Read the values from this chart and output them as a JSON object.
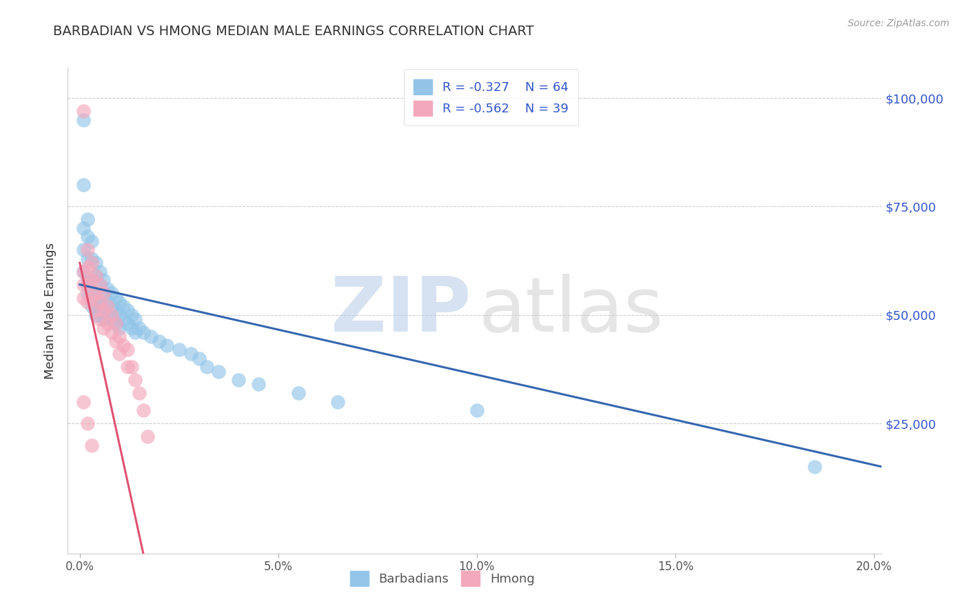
{
  "title": "BARBADIAN VS HMONG MEDIAN MALE EARNINGS CORRELATION CHART",
  "source_text": "Source: ZipAtlas.com",
  "ylabel": "Median Male Earnings",
  "xlim": [
    -0.003,
    0.202
  ],
  "ylim": [
    -5000,
    107000
  ],
  "xticks": [
    0.0,
    0.05,
    0.1,
    0.15,
    0.2
  ],
  "xtick_labels": [
    "0.0%",
    "5.0%",
    "10.0%",
    "15.0%",
    "20.0%"
  ],
  "ytick_labels": [
    "",
    "$25,000",
    "$50,000",
    "$75,000",
    "$100,000"
  ],
  "yticks": [
    0,
    25000,
    50000,
    75000,
    100000
  ],
  "legend_R_barb": "-0.327",
  "legend_N_barb": "64",
  "legend_R_hmong": "-0.562",
  "legend_N_hmong": "39",
  "blue_color": "#92C5E8",
  "pink_color": "#F4A8BC",
  "blue_line_color": "#3565B0",
  "pink_line_color": "#E05070",
  "grid_color": "#CCCCCC",
  "title_color": "#333333",
  "ylabel_color": "#333333",
  "source_color": "#999999",
  "ytick_color": "#3355CC",
  "legend_text_color": "#3355CC",
  "watermark_zip_color": "#BBCFE8",
  "watermark_atlas_color": "#CCCCCC",
  "blue_trend_x0": 0.0,
  "blue_trend_y0": 57000,
  "blue_trend_x1": 0.202,
  "blue_trend_y1": 15000,
  "pink_trend_x0": 0.0,
  "pink_trend_y0": 62000,
  "pink_trend_x1": 0.016,
  "pink_trend_y1": -5000,
  "barbadian_x": [
    0.001,
    0.001,
    0.001,
    0.001,
    0.001,
    0.002,
    0.002,
    0.002,
    0.002,
    0.002,
    0.003,
    0.003,
    0.003,
    0.003,
    0.003,
    0.004,
    0.004,
    0.004,
    0.004,
    0.004,
    0.005,
    0.005,
    0.005,
    0.005,
    0.006,
    0.006,
    0.006,
    0.006,
    0.007,
    0.007,
    0.007,
    0.008,
    0.008,
    0.008,
    0.009,
    0.009,
    0.009,
    0.01,
    0.01,
    0.01,
    0.011,
    0.011,
    0.012,
    0.012,
    0.013,
    0.013,
    0.014,
    0.014,
    0.015,
    0.016,
    0.018,
    0.02,
    0.022,
    0.025,
    0.028,
    0.03,
    0.032,
    0.035,
    0.04,
    0.045,
    0.055,
    0.065,
    0.1,
    0.185
  ],
  "barbadian_y": [
    95000,
    80000,
    70000,
    65000,
    60000,
    72000,
    68000,
    63000,
    58000,
    55000,
    67000,
    63000,
    58000,
    55000,
    52000,
    62000,
    59000,
    55000,
    52000,
    50000,
    60000,
    57000,
    53000,
    50000,
    58000,
    55000,
    52000,
    49000,
    56000,
    53000,
    50000,
    55000,
    52000,
    49000,
    54000,
    51000,
    48000,
    53000,
    50000,
    47000,
    52000,
    49000,
    51000,
    48000,
    50000,
    47000,
    49000,
    46000,
    47000,
    46000,
    45000,
    44000,
    43000,
    42000,
    41000,
    40000,
    38000,
    37000,
    35000,
    34000,
    32000,
    30000,
    28000,
    15000
  ],
  "hmong_x": [
    0.001,
    0.001,
    0.001,
    0.001,
    0.002,
    0.002,
    0.002,
    0.002,
    0.003,
    0.003,
    0.003,
    0.004,
    0.004,
    0.004,
    0.005,
    0.005,
    0.005,
    0.006,
    0.006,
    0.006,
    0.007,
    0.007,
    0.008,
    0.008,
    0.009,
    0.009,
    0.01,
    0.01,
    0.011,
    0.012,
    0.012,
    0.013,
    0.014,
    0.015,
    0.016,
    0.017,
    0.001,
    0.002,
    0.003
  ],
  "hmong_y": [
    97000,
    60000,
    57000,
    54000,
    65000,
    61000,
    57000,
    53000,
    62000,
    58000,
    54000,
    59000,
    55000,
    51000,
    57000,
    53000,
    49000,
    55000,
    51000,
    47000,
    52000,
    48000,
    50000,
    46000,
    48000,
    44000,
    45000,
    41000,
    43000,
    42000,
    38000,
    38000,
    35000,
    32000,
    28000,
    22000,
    30000,
    25000,
    20000
  ]
}
